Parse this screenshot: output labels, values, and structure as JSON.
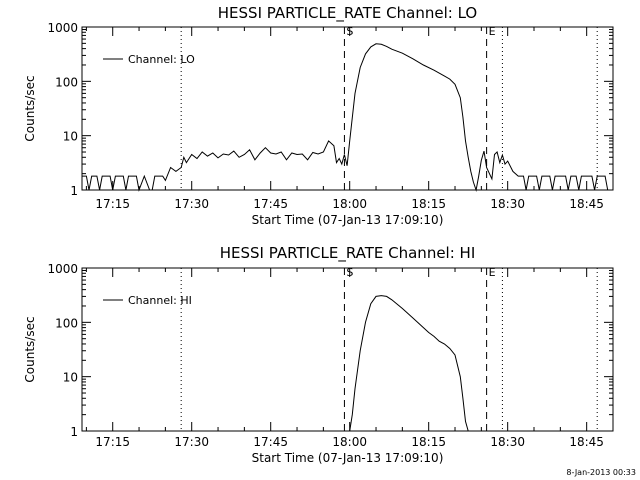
{
  "footer": {
    "date_stamp": "8-Jan-2013 00:33"
  },
  "chart_data": [
    {
      "type": "line",
      "title": "HESSI PARTICLE_RATE Channel: LO",
      "xlabel": "Start Time (07-Jan-13 17:09:10)",
      "ylabel": "Counts/sec",
      "yscale": "log",
      "ylim": [
        1,
        1000
      ],
      "xlim": [
        "17:09:10",
        "18:50:00"
      ],
      "x_ticks": [
        "17:15",
        "17:30",
        "17:45",
        "18:00",
        "18:15",
        "18:30",
        "18:45"
      ],
      "y_ticks": [
        "1",
        "10",
        "100",
        "1000"
      ],
      "legend": {
        "label": "Channel: LO",
        "placement": "top-left"
      },
      "markers": [
        {
          "label": "S",
          "time": "17:59:00",
          "style": "dashed"
        },
        {
          "label": "E",
          "time": "18:26:00",
          "style": "dashed"
        }
      ],
      "vertical_lines": [
        {
          "time": "17:28:00",
          "style": "dotted"
        },
        {
          "time": "18:29:00",
          "style": "dotted"
        },
        {
          "time": "18:47:00",
          "style": "dotted"
        }
      ],
      "series": [
        {
          "name": "Channel: LO",
          "points": [
            [
              "17:09:10",
              1.8
            ],
            [
              "17:10:00",
              1.8
            ],
            [
              "17:10:30",
              1.0
            ],
            [
              "17:11:00",
              1.8
            ],
            [
              "17:12:00",
              1.8
            ],
            [
              "17:12:30",
              1.0
            ],
            [
              "17:13:00",
              1.8
            ],
            [
              "17:14:30",
              1.8
            ],
            [
              "17:15:00",
              1.0
            ],
            [
              "17:15:30",
              1.8
            ],
            [
              "17:17:00",
              1.8
            ],
            [
              "17:17:30",
              1.0
            ],
            [
              "17:18:00",
              1.8
            ],
            [
              "17:19:30",
              1.8
            ],
            [
              "17:20:00",
              1.0
            ],
            [
              "17:21:00",
              1.8
            ],
            [
              "17:22:00",
              1.0
            ],
            [
              "17:22:30",
              1.0
            ],
            [
              "17:23:00",
              1.8
            ],
            [
              "17:24:30",
              1.8
            ],
            [
              "17:25:00",
              1.5
            ],
            [
              "17:26:00",
              2.6
            ],
            [
              "17:27:00",
              2.2
            ],
            [
              "17:28:00",
              2.6
            ],
            [
              "17:28:30",
              4.0
            ],
            [
              "17:29:00",
              3.2
            ],
            [
              "17:30:00",
              4.5
            ],
            [
              "17:31:00",
              3.8
            ],
            [
              "17:32:00",
              5.0
            ],
            [
              "17:33:00",
              4.2
            ],
            [
              "17:34:00",
              4.8
            ],
            [
              "17:35:00",
              3.9
            ],
            [
              "17:36:00",
              4.6
            ],
            [
              "17:37:00",
              4.4
            ],
            [
              "17:38:00",
              5.2
            ],
            [
              "17:39:00",
              4.0
            ],
            [
              "17:40:00",
              4.5
            ],
            [
              "17:41:00",
              5.5
            ],
            [
              "17:42:00",
              3.6
            ],
            [
              "17:43:00",
              4.8
            ],
            [
              "17:44:00",
              6.0
            ],
            [
              "17:45:00",
              4.8
            ],
            [
              "17:46:00",
              4.6
            ],
            [
              "17:47:00",
              5.0
            ],
            [
              "17:48:00",
              3.6
            ],
            [
              "17:49:00",
              4.8
            ],
            [
              "17:50:00",
              4.5
            ],
            [
              "17:51:00",
              4.6
            ],
            [
              "17:52:00",
              3.6
            ],
            [
              "17:53:00",
              4.9
            ],
            [
              "17:54:00",
              4.6
            ],
            [
              "17:55:00",
              5.0
            ],
            [
              "17:56:00",
              8.0
            ],
            [
              "17:57:00",
              6.5
            ],
            [
              "17:57:30",
              3.2
            ],
            [
              "17:58:00",
              3.8
            ],
            [
              "17:58:30",
              3.0
            ],
            [
              "17:59:00",
              4.5
            ],
            [
              "17:59:30",
              2.8
            ],
            [
              "18:00:00",
              8.0
            ],
            [
              "18:01:00",
              60
            ],
            [
              "18:02:00",
              180
            ],
            [
              "18:03:00",
              320
            ],
            [
              "18:04:00",
              430
            ],
            [
              "18:05:00",
              490
            ],
            [
              "18:06:00",
              480
            ],
            [
              "18:07:00",
              440
            ],
            [
              "18:08:00",
              390
            ],
            [
              "18:10:00",
              330
            ],
            [
              "18:12:00",
              260
            ],
            [
              "18:14:00",
              200
            ],
            [
              "18:16:00",
              160
            ],
            [
              "18:18:00",
              125
            ],
            [
              "18:19:00",
              110
            ],
            [
              "18:20:00",
              88
            ],
            [
              "18:21:00",
              50
            ],
            [
              "18:21:30",
              22
            ],
            [
              "18:22:00",
              8
            ],
            [
              "18:22:30",
              4
            ],
            [
              "18:23:00",
              2.2
            ],
            [
              "18:23:30",
              1.4
            ],
            [
              "18:24:00",
              1.0
            ],
            [
              "18:24:30",
              1.8
            ],
            [
              "18:25:00",
              3.5
            ],
            [
              "18:25:30",
              5.2
            ],
            [
              "18:26:00",
              2.6
            ],
            [
              "18:27:00",
              1.6
            ],
            [
              "18:27:30",
              4.5
            ],
            [
              "18:28:00",
              5.0
            ],
            [
              "18:28:30",
              3.2
            ],
            [
              "18:29:00",
              4.4
            ],
            [
              "18:29:30",
              3.0
            ],
            [
              "18:30:00",
              3.4
            ],
            [
              "18:31:00",
              2.2
            ],
            [
              "18:32:00",
              1.8
            ],
            [
              "18:33:00",
              1.8
            ],
            [
              "18:33:30",
              1.0
            ],
            [
              "18:34:00",
              1.8
            ],
            [
              "18:35:30",
              1.8
            ],
            [
              "18:36:00",
              1.0
            ],
            [
              "18:36:30",
              1.8
            ],
            [
              "18:38:00",
              1.8
            ],
            [
              "18:38:30",
              1.0
            ],
            [
              "18:39:00",
              1.8
            ],
            [
              "18:41:00",
              1.8
            ],
            [
              "18:41:30",
              1.0
            ],
            [
              "18:42:00",
              1.8
            ],
            [
              "18:43:00",
              1.8
            ],
            [
              "18:43:30",
              1.0
            ],
            [
              "18:44:00",
              1.8
            ],
            [
              "18:46:00",
              1.8
            ],
            [
              "18:46:30",
              1.0
            ],
            [
              "18:47:00",
              1.8
            ],
            [
              "18:48:30",
              1.8
            ],
            [
              "18:49:00",
              1.0
            ],
            [
              "18:50:00",
              1.0
            ]
          ]
        }
      ]
    },
    {
      "type": "line",
      "title": "HESSI PARTICLE_RATE Channel: HI",
      "xlabel": "Start Time (07-Jan-13 17:09:10)",
      "ylabel": "Counts/sec",
      "yscale": "log",
      "ylim": [
        1,
        1000
      ],
      "xlim": [
        "17:09:10",
        "18:50:00"
      ],
      "x_ticks": [
        "17:15",
        "17:30",
        "17:45",
        "18:00",
        "18:15",
        "18:30",
        "18:45"
      ],
      "y_ticks": [
        "1",
        "10",
        "100",
        "1000"
      ],
      "legend": {
        "label": "Channel: HI",
        "placement": "top-left"
      },
      "markers": [
        {
          "label": "S",
          "time": "17:59:00",
          "style": "dashed"
        },
        {
          "label": "E",
          "time": "18:26:00",
          "style": "dashed"
        }
      ],
      "vertical_lines": [
        {
          "time": "17:28:00",
          "style": "dotted"
        },
        {
          "time": "18:29:00",
          "style": "dotted"
        },
        {
          "time": "18:47:00",
          "style": "dotted"
        }
      ],
      "series": [
        {
          "name": "Channel: HI",
          "points": [
            [
              "18:00:00",
              1.0
            ],
            [
              "18:00:30",
              2.0
            ],
            [
              "18:01:00",
              6
            ],
            [
              "18:02:00",
              30
            ],
            [
              "18:03:00",
              100
            ],
            [
              "18:04:00",
              220
            ],
            [
              "18:05:00",
              300
            ],
            [
              "18:06:00",
              310
            ],
            [
              "18:07:00",
              300
            ],
            [
              "18:08:00",
              260
            ],
            [
              "18:10:00",
              180
            ],
            [
              "18:12:00",
              120
            ],
            [
              "18:14:00",
              80
            ],
            [
              "18:15:00",
              65
            ],
            [
              "18:16:00",
              55
            ],
            [
              "18:17:00",
              45
            ],
            [
              "18:18:00",
              40
            ],
            [
              "18:19:00",
              33
            ],
            [
              "18:20:00",
              25
            ],
            [
              "18:21:00",
              10
            ],
            [
              "18:21:30",
              4
            ],
            [
              "18:22:00",
              1.5
            ],
            [
              "18:22:30",
              1.0
            ]
          ]
        }
      ]
    }
  ]
}
